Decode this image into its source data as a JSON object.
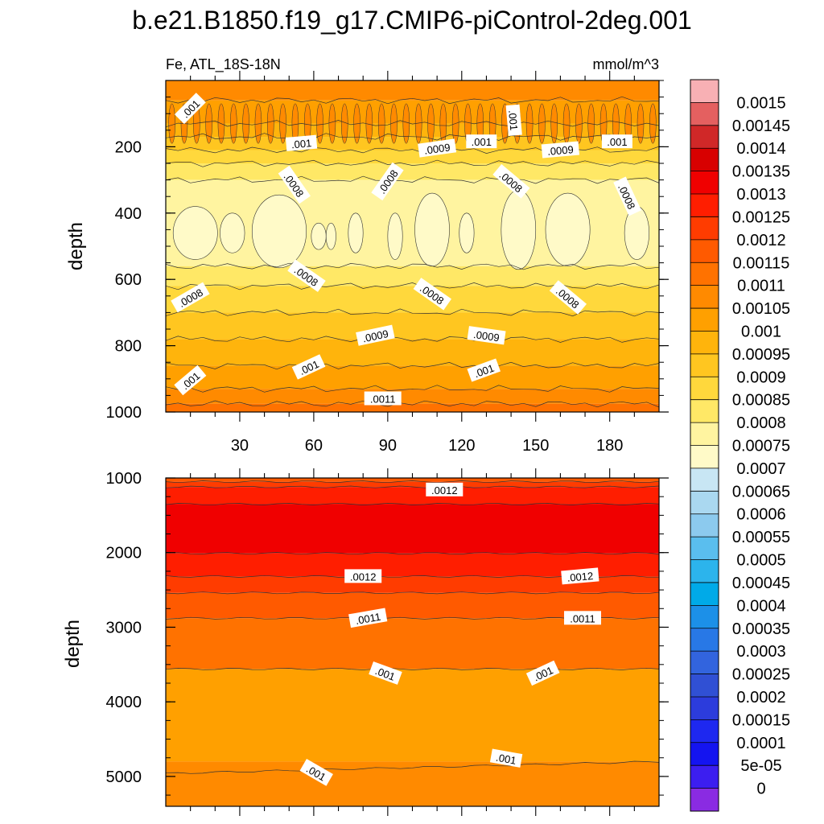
{
  "chart_data": [
    {
      "type": "contour",
      "panel": "upper",
      "title": "b.e21.B1850.f19_g17.CMIP6-piControl-2deg.001",
      "left_string": "Fe, ATL_18S-18N",
      "right_string": "mmol/m^3",
      "xlabel": "",
      "ylabel": "depth",
      "xlim": [
        0,
        200
      ],
      "ylim": [
        1000,
        0
      ],
      "x_ticks": [
        30,
        60,
        90,
        120,
        150,
        180
      ],
      "x_tick_labels": [
        "30",
        "60",
        "90",
        "120",
        "150",
        "180"
      ],
      "y_ticks": [
        200,
        400,
        600,
        800,
        1000
      ],
      "y_tick_labels": [
        "200",
        "400",
        "600",
        "800",
        "1000"
      ],
      "contour_labels": [
        {
          "text": ".001",
          "x": 10,
          "depth": 85,
          "angle": -45
        },
        {
          "text": ".001",
          "x": 55,
          "depth": 190,
          "angle": -5
        },
        {
          "text": ".001",
          "x": 141,
          "depth": 120,
          "angle": 85
        },
        {
          "text": ".001",
          "x": 128,
          "depth": 185,
          "angle": 0
        },
        {
          "text": ".0009",
          "x": 110,
          "depth": 205,
          "angle": -8
        },
        {
          "text": ".0009",
          "x": 160,
          "depth": 210,
          "angle": -5
        },
        {
          "text": ".001",
          "x": 183,
          "depth": 185,
          "angle": 0
        },
        {
          "text": ".0008",
          "x": 52,
          "depth": 315,
          "angle": 55
        },
        {
          "text": ".0008",
          "x": 90,
          "depth": 305,
          "angle": -55
        },
        {
          "text": ".0008",
          "x": 140,
          "depth": 305,
          "angle": 40
        },
        {
          "text": ".0008",
          "x": 187,
          "depth": 350,
          "angle": 65
        },
        {
          "text": ".0008",
          "x": 57,
          "depth": 590,
          "angle": 35
        },
        {
          "text": ".0008",
          "x": 10,
          "depth": 655,
          "angle": -30
        },
        {
          "text": ".0008",
          "x": 108,
          "depth": 645,
          "angle": 35
        },
        {
          "text": ".0008",
          "x": 163,
          "depth": 655,
          "angle": 40
        },
        {
          "text": ".0009",
          "x": 85,
          "depth": 770,
          "angle": -12
        },
        {
          "text": ".0009",
          "x": 130,
          "depth": 770,
          "angle": 8
        },
        {
          "text": ".001",
          "x": 58,
          "depth": 865,
          "angle": -25
        },
        {
          "text": ".001",
          "x": 129,
          "depth": 875,
          "angle": -20
        },
        {
          "text": ".001",
          "x": 10,
          "depth": 905,
          "angle": -40
        },
        {
          "text": ".0011",
          "x": 88,
          "depth": 960,
          "angle": 0
        }
      ]
    },
    {
      "type": "contour",
      "panel": "lower",
      "xlabel": "",
      "ylabel": "depth",
      "xlim": [
        0,
        200
      ],
      "ylim": [
        5400,
        1000
      ],
      "y_ticks": [
        1000,
        2000,
        3000,
        4000,
        5000
      ],
      "y_tick_labels": [
        "1000",
        "2000",
        "3000",
        "4000",
        "5000"
      ],
      "contour_labels": [
        {
          "text": ".0012",
          "x": 113,
          "depth": 1160,
          "angle": 0
        },
        {
          "text": ".0012",
          "x": 80,
          "depth": 2320,
          "angle": 0
        },
        {
          "text": ".0012",
          "x": 168,
          "depth": 2320,
          "angle": -5
        },
        {
          "text": ".0011",
          "x": 82,
          "depth": 2880,
          "angle": -10
        },
        {
          "text": ".0011",
          "x": 169,
          "depth": 2880,
          "angle": 0
        },
        {
          "text": ".001",
          "x": 89,
          "depth": 3620,
          "angle": 20
        },
        {
          "text": ".001",
          "x": 153,
          "depth": 3620,
          "angle": -25
        },
        {
          "text": ".001",
          "x": 61,
          "depth": 4950,
          "angle": 30
        },
        {
          "text": ".001",
          "x": 138,
          "depth": 4760,
          "angle": 10
        }
      ]
    }
  ],
  "colorbar": {
    "labels": [
      "0.0015",
      "0.00145",
      "0.0014",
      "0.00135",
      "0.0013",
      "0.00125",
      "0.0012",
      "0.00115",
      "0.0011",
      "0.00105",
      "0.001",
      "0.00095",
      "0.0009",
      "0.00085",
      "0.0008",
      "0.00075",
      "0.0007",
      "0.00065",
      "0.0006",
      "0.00055",
      "0.0005",
      "0.00045",
      "0.0004",
      "0.00035",
      "0.0003",
      "0.00025",
      "0.0002",
      "0.00015",
      "0.0001",
      "5e-05",
      "0"
    ],
    "colors": [
      "#F8B0B4",
      "#E46060",
      "#D02828",
      "#D80000",
      "#F00000",
      "#FF1E00",
      "#FF3C00",
      "#FF5A00",
      "#FF7200",
      "#FF8A00",
      "#FFA000",
      "#FFB40C",
      "#FFC620",
      "#FFD83C",
      "#FFE866",
      "#FFF4A0",
      "#FFFAC8",
      "#C8E6F4",
      "#AAD8F0",
      "#8CCAEE",
      "#5ABEEE",
      "#2CB4EC",
      "#00AAE8",
      "#1C90E8",
      "#2878E6",
      "#3264DE",
      "#3050D4",
      "#2C3CDC",
      "#1E28F0",
      "#1414F0",
      "#3C1EF0",
      "#8A2BE2"
    ]
  }
}
